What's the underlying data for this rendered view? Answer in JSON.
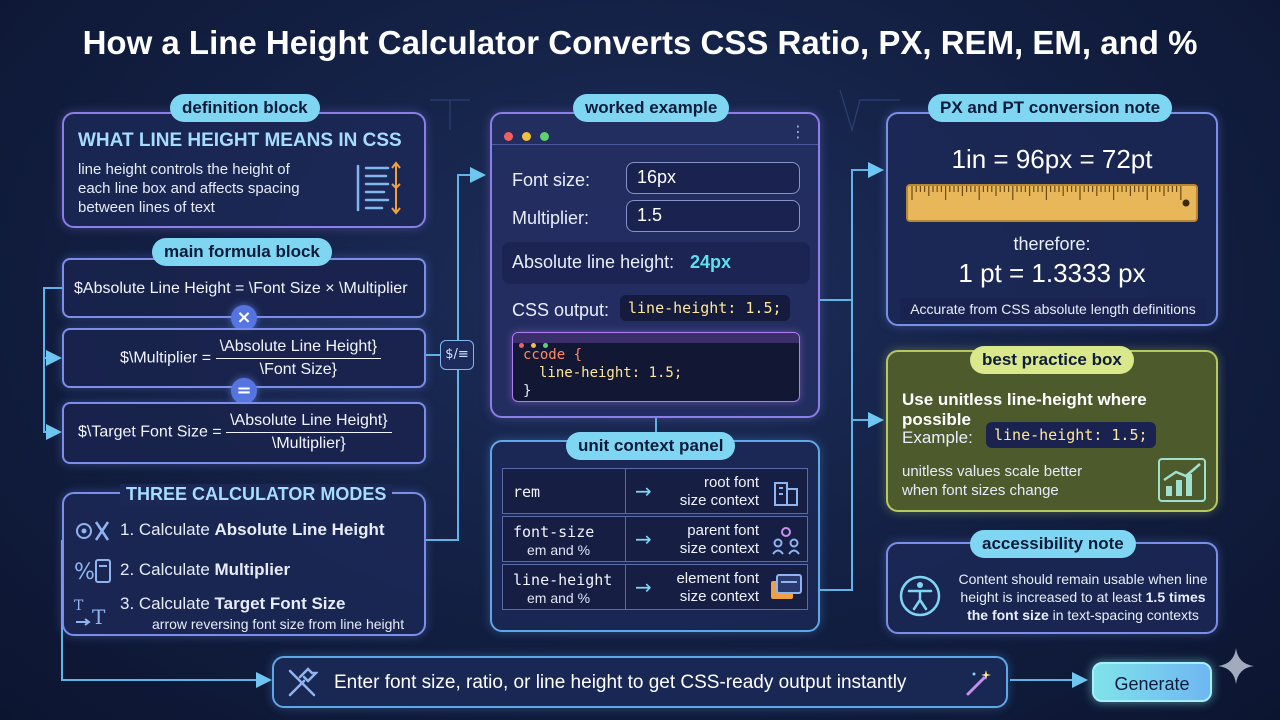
{
  "title": "How a Line Height Calculator Converts CSS Ratio, PX, REM, EM, and %",
  "definition": {
    "pill": "definition block",
    "heading": "WHAT LINE HEIGHT MEANS IN CSS",
    "body_line1": "line height controls the height of",
    "body_line2": "each line box and affects spacing",
    "body_line3": "between lines of text"
  },
  "formulas": {
    "pill": "main formula block",
    "f1": "$Absolute Line Height = \\Font Size × \\Multiplier",
    "f2_left": "$\\Multiplier =",
    "f2_num": "\\Absolute Line Height}",
    "f2_den": "\\Font Size}",
    "f3_left": "$\\Target Font Size =",
    "f3_num": "\\Absolute Line Height}",
    "f3_den": "\\Multiplier}",
    "op1": "×",
    "op2": "=",
    "side_icon": "$/≡"
  },
  "modes": {
    "heading": "THREE CALCULATOR MODES",
    "m1_prefix": "1. Calculate ",
    "m1_bold": "Absolute Line Height",
    "m2_prefix": "2. Calculate ",
    "m2_bold": "Multiplier",
    "m3_prefix": "3. Calculate ",
    "m3_bold": "Target Font Size",
    "m3_sub": "arrow reversing font size from line height"
  },
  "worked": {
    "pill": "worked example",
    "font_size_label": "Font size:",
    "font_size_value": "16px",
    "multiplier_label": "Multiplier:",
    "multiplier_value": "1.5",
    "absolute_label": "Absolute line height:",
    "absolute_value": "24px",
    "css_output_label": "CSS output:",
    "css_output_code": "line-height: 1.5;",
    "code_line1": "ccode {",
    "code_line2": "line-height: 1.5;",
    "code_line3": "}",
    "menu_icon": "⋮"
  },
  "units": {
    "pill": "unit context panel",
    "rows": [
      {
        "key": "rem",
        "sub": "",
        "ctx1": "root font",
        "ctx2": "size context"
      },
      {
        "key": "font-size",
        "sub": "em and %",
        "ctx1": "parent font",
        "ctx2": "size context"
      },
      {
        "key": "line-height",
        "sub": "em and %",
        "ctx1": "element font",
        "ctx2": "size context"
      }
    ]
  },
  "px_pt": {
    "pill": "PX and PT conversion note",
    "equation": "1in = 96px = 72pt",
    "therefore": "therefore:",
    "result": "1 pt = 1.3333 px",
    "note": "Accurate from CSS absolute length definitions"
  },
  "best_practice": {
    "pill": "best practice box",
    "heading": "Use unitless line-height where possible",
    "example_label": "Example:",
    "example_code": "line-height: 1.5;",
    "body_line1": "unitless values scale better",
    "body_line2": "when font sizes change"
  },
  "accessibility": {
    "pill": "accessibility note",
    "line1": "Content should remain usable when line",
    "line2_prefix": "height is increased to at least ",
    "line2_bold": "1.5 times",
    "line3_bold": "the font size",
    "line3_suffix": " in text-spacing contexts"
  },
  "bottom_bar": {
    "text": "Enter font size, ratio, or line height to get CSS-ready output instantly",
    "button": "Generate"
  },
  "colors": {
    "accent_cyan": "#7fd6f3",
    "accent_yellow": "#ffe89a",
    "highlight_value": "#5fe0f0",
    "best_practice_bg": "#4d5a2c"
  }
}
